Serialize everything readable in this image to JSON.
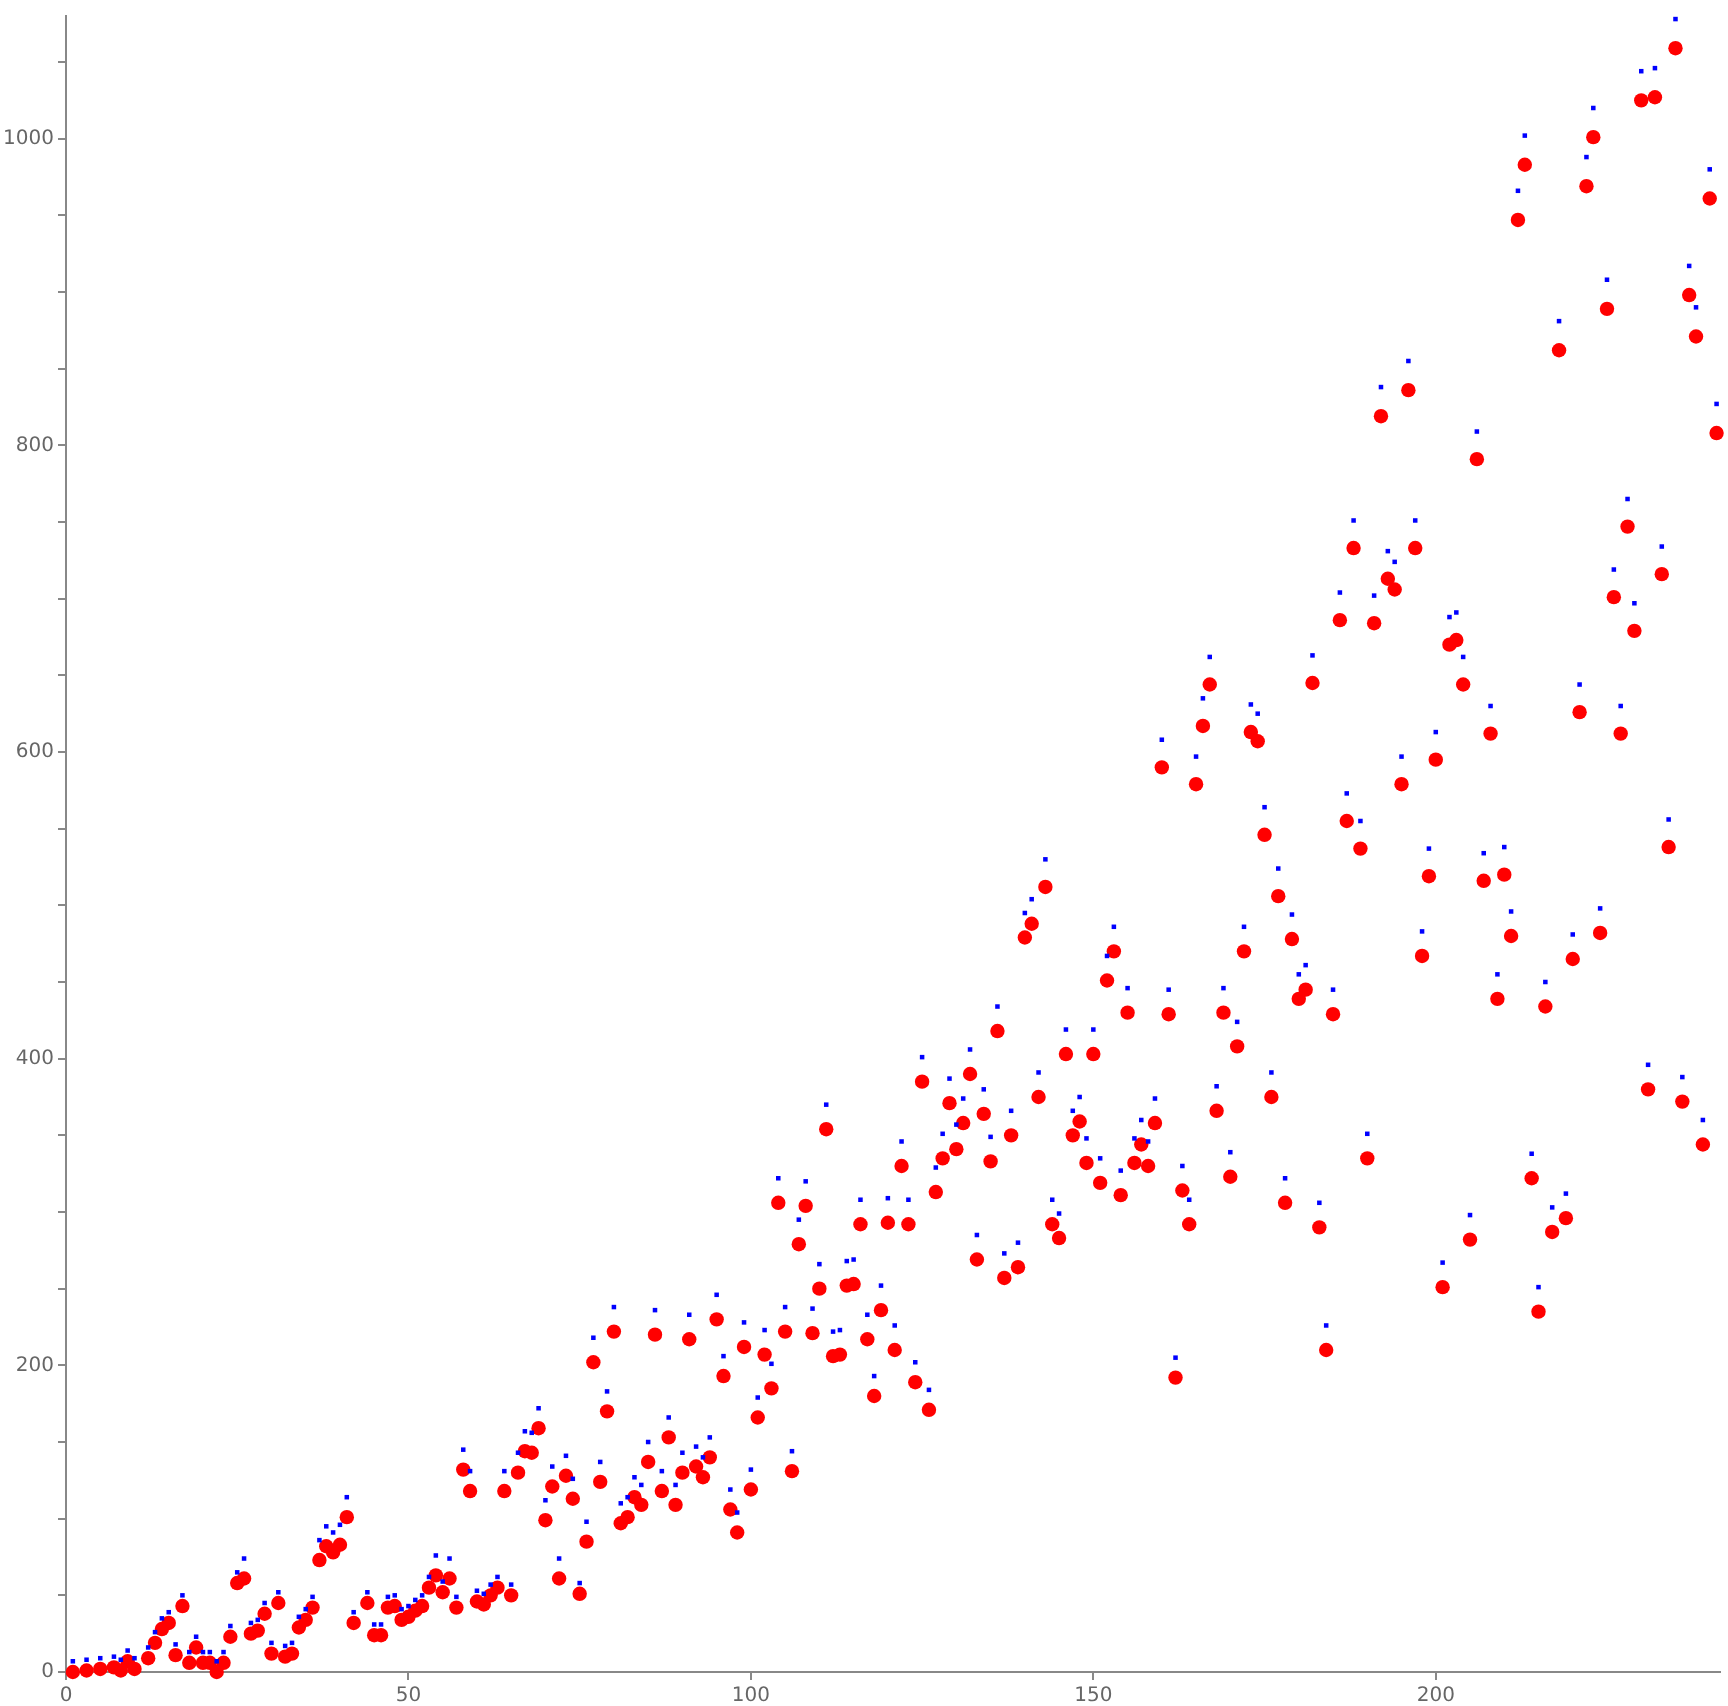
{
  "chart_data": {
    "type": "scatter",
    "xlim": [
      0,
      241.5
    ],
    "ylim": [
      0,
      1080
    ],
    "xticks": [
      0,
      50,
      100,
      150,
      200
    ],
    "yticks": [
      0,
      {
        "value": 50,
        "label": null
      },
      {
        "value": 100,
        "label": null
      },
      {
        "value": 150,
        "label": null
      },
      200,
      {
        "value": 250,
        "label": null
      },
      {
        "value": 300,
        "label": null
      },
      {
        "value": 350,
        "label": null
      },
      400,
      {
        "value": 450,
        "label": null
      },
      {
        "value": 500,
        "label": null
      },
      {
        "value": 550,
        "label": null
      },
      600,
      {
        "value": 650,
        "label": null
      },
      {
        "value": 700,
        "label": null
      },
      {
        "value": 750,
        "label": null
      },
      800,
      {
        "value": 850,
        "label": null
      },
      {
        "value": 900,
        "label": null
      },
      {
        "value": 950,
        "label": null
      },
      1000,
      {
        "value": 1050,
        "label": null
      }
    ],
    "grid": false,
    "legend": false,
    "series": [
      {
        "color": "#0000ff",
        "marker": "square",
        "x": [
          1,
          3,
          5,
          7,
          8,
          9,
          10,
          12,
          13,
          14,
          15,
          16,
          17,
          18,
          19,
          20,
          21,
          22,
          23,
          24,
          25,
          26,
          27,
          28,
          29,
          30,
          31,
          32,
          33,
          34,
          35,
          36,
          37,
          38,
          39,
          40,
          41,
          42,
          44,
          45,
          46,
          47,
          48,
          49,
          50,
          51,
          52,
          53,
          54,
          55,
          56,
          57,
          58,
          59,
          60,
          61,
          62,
          63,
          64,
          65,
          66,
          67,
          68,
          69,
          70,
          71,
          72,
          73,
          74,
          75,
          76,
          77,
          78,
          79,
          80,
          81,
          82,
          83,
          84,
          85,
          86,
          87,
          88,
          89,
          90,
          91,
          92,
          93,
          94,
          95,
          96,
          97,
          98,
          99,
          100,
          101,
          102,
          103,
          104,
          105,
          106,
          107,
          108,
          109,
          110,
          111,
          112,
          113,
          114,
          115,
          116,
          117,
          118,
          119,
          120,
          121,
          122,
          123,
          124,
          125,
          126,
          127,
          128,
          129,
          130,
          131,
          132,
          133,
          134,
          135,
          136,
          137,
          138,
          139,
          140,
          141,
          142,
          143,
          144,
          145,
          146,
          147,
          148,
          149,
          150,
          151,
          152,
          153,
          154,
          155,
          156,
          157,
          158,
          159,
          160,
          161,
          162,
          163,
          164,
          165,
          166,
          167,
          168,
          169,
          170,
          171,
          172,
          173,
          174,
          175,
          176,
          177,
          178,
          179,
          180,
          181,
          182,
          183,
          184,
          185,
          186,
          187,
          188,
          189,
          190,
          191,
          192,
          193,
          194,
          195,
          196,
          197,
          198,
          199,
          200,
          201,
          202,
          203,
          204,
          205,
          206,
          207,
          208,
          209,
          210,
          211,
          212,
          213,
          214,
          215,
          216,
          217,
          218,
          219,
          220,
          221,
          222,
          223,
          224,
          225,
          226,
          227,
          228,
          229,
          230,
          231,
          232,
          233,
          234,
          235,
          236,
          237,
          238,
          239,
          240,
          241
        ],
        "values": [
          7,
          8,
          9,
          10,
          8,
          14,
          9,
          16,
          26,
          35,
          39,
          18,
          50,
          13,
          23,
          13,
          13,
          7,
          13,
          30,
          65,
          74,
          32,
          34,
          45,
          19,
          52,
          17,
          19,
          36,
          41,
          49,
          86,
          95,
          91,
          96,
          114,
          39,
          52,
          31,
          31,
          49,
          50,
          41,
          43,
          47,
          50,
          62,
          76,
          59,
          74,
          49,
          145,
          131,
          53,
          51,
          57,
          62,
          131,
          57,
          143,
          157,
          156,
          172,
          112,
          134,
          74,
          141,
          126,
          58,
          98,
          218,
          137,
          183,
          238,
          110,
          114,
          127,
          122,
          150,
          236,
          131,
          166,
          122,
          143,
          233,
          147,
          140,
          153,
          246,
          206,
          119,
          104,
          228,
          132,
          179,
          223,
          201,
          322,
          238,
          144,
          295,
          320,
          237,
          266,
          370,
          222,
          223,
          268,
          269,
          308,
          233,
          193,
          252,
          309,
          226,
          346,
          308,
          202,
          401,
          184,
          329,
          351,
          387,
          357,
          374,
          406,
          285,
          380,
          349,
          434,
          273,
          366,
          280,
          495,
          504,
          391,
          530,
          308,
          299,
          419,
          366,
          375,
          348,
          419,
          335,
          467,
          486,
          327,
          446,
          348,
          360,
          346,
          374,
          608,
          445,
          205,
          330,
          308,
          597,
          635,
          662,
          382,
          446,
          339,
          424,
          486,
          631,
          625,
          564,
          391,
          524,
          322,
          494,
          455,
          461,
          663,
          306,
          226,
          445,
          704,
          573,
          751,
          555,
          351,
          702,
          838,
          731,
          724,
          597,
          855,
          751,
          483,
          537,
          613,
          267,
          688,
          691,
          662,
          298,
          809,
          534,
          630,
          455,
          538,
          496,
          966,
          1002,
          338,
          251,
          450,
          303,
          881,
          312,
          481,
          644,
          988,
          1020,
          498,
          908,
          719,
          630,
          765,
          697,
          1044,
          396,
          1046,
          734,
          556,
          1078,
          388,
          917,
          890,
          360,
          980,
          827
        ]
      },
      {
        "color": "#ff0000",
        "marker": "circle",
        "x": [
          1,
          3,
          5,
          7,
          8,
          9,
          10,
          12,
          13,
          14,
          15,
          16,
          17,
          18,
          19,
          20,
          21,
          22,
          23,
          24,
          25,
          26,
          27,
          28,
          29,
          30,
          31,
          32,
          33,
          34,
          35,
          36,
          37,
          38,
          39,
          40,
          41,
          42,
          44,
          45,
          46,
          47,
          48,
          49,
          50,
          51,
          52,
          53,
          54,
          55,
          56,
          57,
          58,
          59,
          60,
          61,
          62,
          63,
          64,
          65,
          66,
          67,
          68,
          69,
          70,
          71,
          72,
          73,
          74,
          75,
          76,
          77,
          78,
          79,
          80,
          81,
          82,
          83,
          84,
          85,
          86,
          87,
          88,
          89,
          90,
          91,
          92,
          93,
          94,
          95,
          96,
          97,
          98,
          99,
          100,
          101,
          102,
          103,
          104,
          105,
          106,
          107,
          108,
          109,
          110,
          111,
          112,
          113,
          114,
          115,
          116,
          117,
          118,
          119,
          120,
          121,
          122,
          123,
          124,
          125,
          126,
          127,
          128,
          129,
          130,
          131,
          132,
          133,
          134,
          135,
          136,
          137,
          138,
          139,
          140,
          141,
          142,
          143,
          144,
          145,
          146,
          147,
          148,
          149,
          150,
          151,
          152,
          153,
          154,
          155,
          156,
          157,
          158,
          159,
          160,
          161,
          162,
          163,
          164,
          165,
          166,
          167,
          168,
          169,
          170,
          171,
          172,
          173,
          174,
          175,
          176,
          177,
          178,
          179,
          180,
          181,
          182,
          183,
          184,
          185,
          186,
          187,
          188,
          189,
          190,
          191,
          192,
          193,
          194,
          195,
          196,
          197,
          198,
          199,
          200,
          201,
          202,
          203,
          204,
          205,
          206,
          207,
          208,
          209,
          210,
          211,
          212,
          213,
          214,
          215,
          216,
          217,
          218,
          219,
          220,
          221,
          222,
          223,
          224,
          225,
          226,
          227,
          228,
          229,
          230,
          231,
          232,
          233,
          234,
          235,
          236,
          237,
          238,
          239,
          240,
          241
        ],
        "values": [
          0,
          1,
          2,
          3,
          1,
          7,
          2,
          9,
          19,
          28,
          32,
          11,
          43,
          6,
          16,
          6,
          6,
          0,
          6,
          23,
          58,
          61,
          25,
          27,
          38,
          12,
          45,
          10,
          12,
          29,
          34,
          42,
          73,
          82,
          78,
          83,
          101,
          32,
          45,
          24,
          24,
          42,
          43,
          34,
          36,
          40,
          43,
          55,
          63,
          52,
          61,
          42,
          132,
          118,
          46,
          44,
          50,
          55,
          118,
          50,
          130,
          144,
          143,
          159,
          99,
          121,
          61,
          128,
          113,
          51,
          85,
          202,
          124,
          170,
          222,
          97,
          101,
          114,
          109,
          137,
          220,
          118,
          153,
          109,
          130,
          217,
          134,
          127,
          140,
          230,
          193,
          106,
          91,
          212,
          119,
          166,
          207,
          185,
          306,
          222,
          131,
          279,
          304,
          221,
          250,
          354,
          206,
          207,
          252,
          253,
          292,
          217,
          180,
          236,
          293,
          210,
          330,
          292,
          189,
          385,
          171,
          313,
          335,
          371,
          341,
          358,
          390,
          269,
          364,
          333,
          418,
          257,
          350,
          264,
          479,
          488,
          375,
          512,
          292,
          283,
          403,
          350,
          359,
          332,
          403,
          319,
          451,
          470,
          311,
          430,
          332,
          344,
          330,
          358,
          590,
          429,
          192,
          314,
          292,
          579,
          617,
          644,
          366,
          430,
          323,
          408,
          470,
          613,
          607,
          546,
          375,
          506,
          306,
          478,
          439,
          445,
          645,
          290,
          210,
          429,
          686,
          555,
          733,
          537,
          335,
          684,
          819,
          713,
          706,
          579,
          836,
          733,
          467,
          519,
          595,
          251,
          670,
          673,
          644,
          282,
          791,
          516,
          612,
          439,
          520,
          480,
          947,
          983,
          322,
          235,
          434,
          287,
          862,
          296,
          465,
          626,
          969,
          1001,
          482,
          889,
          701,
          612,
          747,
          679,
          1025,
          380,
          1027,
          716,
          538,
          1059,
          372,
          898,
          871,
          344,
          961,
          808
        ]
      }
    ]
  }
}
